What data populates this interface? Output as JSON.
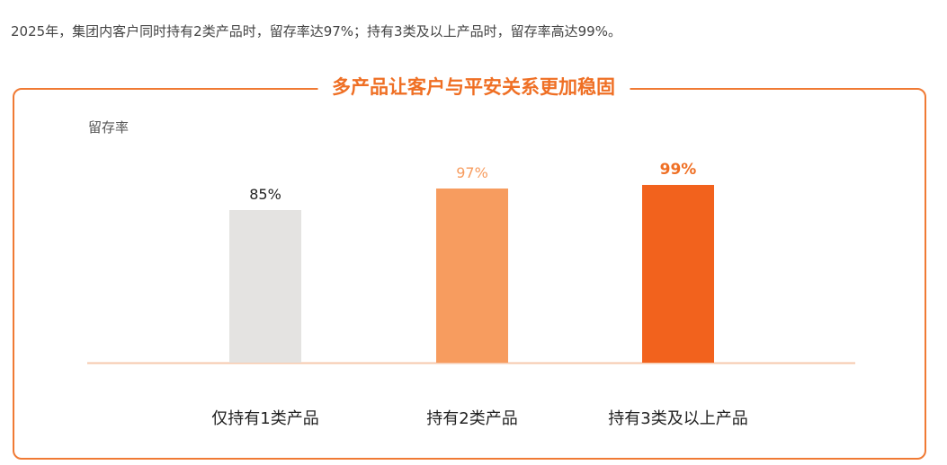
{
  "intro_text": "2025年，集团内客户同时持有2类产品时，留存率达97%；持有3类及以上产品时，留存率高达99%。",
  "panel_title": "多产品让客户与平安关系更加稳固",
  "colors": {
    "accent": "#ef6f24",
    "border": "#f07a34",
    "baseline": "#f6c9ae"
  },
  "chart_data": {
    "type": "bar",
    "title": "多产品让客户与平安关系更加稳固",
    "ylabel": "留存率",
    "xlabel": "",
    "unit": "%",
    "ylim": [
      0,
      100
    ],
    "grid": false,
    "categories": [
      "仅持有1类产品",
      "持有2类产品",
      "持有3类及以上产品"
    ],
    "values": [
      85,
      97,
      99
    ],
    "value_labels": [
      "85%",
      "97%",
      "99%"
    ],
    "bar_colors": [
      "#e4e3e1",
      "#f79c5f",
      "#f2621d"
    ],
    "label_colors": [
      "#222222",
      "#f79c5f",
      "#ef6f24"
    ],
    "label_bold": [
      false,
      false,
      true
    ]
  }
}
